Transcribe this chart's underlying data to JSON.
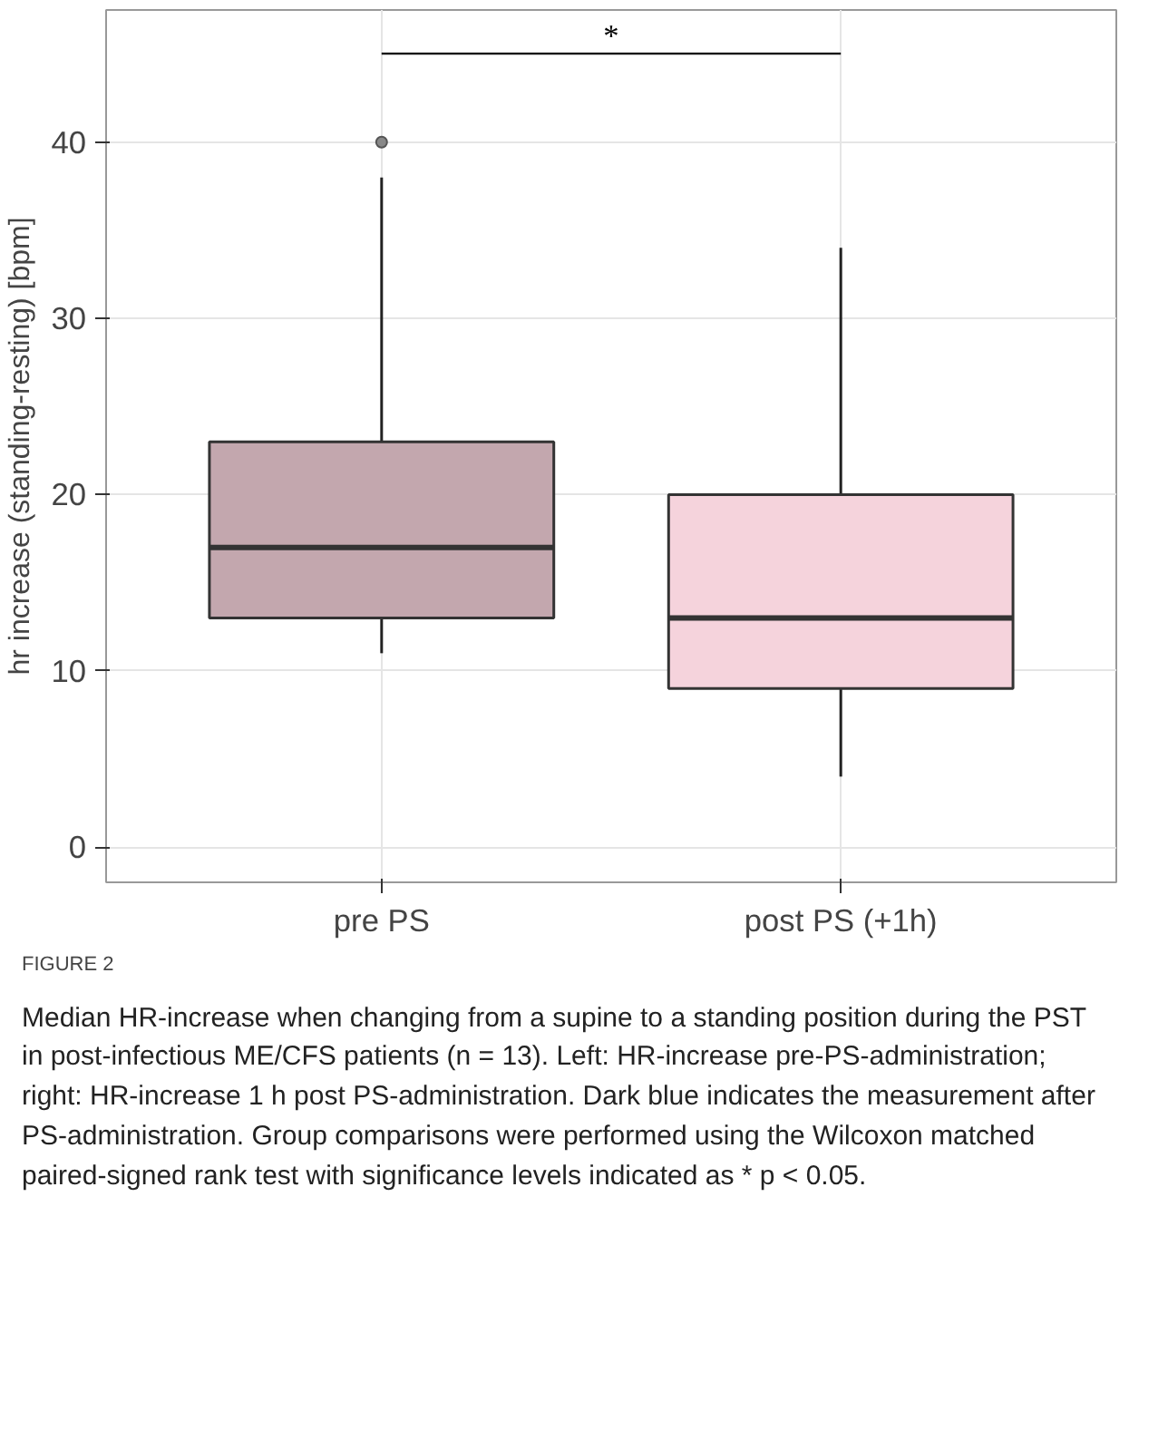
{
  "chart_data": {
    "type": "box",
    "ylabel": "hr increase (standing-resting) [bpm]",
    "categories": [
      "pre PS",
      "post PS (+1h)"
    ],
    "boxes": [
      {
        "low": 11,
        "q1": 13,
        "median": 17,
        "q3": 23,
        "high": 38,
        "outliers": [
          40
        ]
      },
      {
        "low": 4,
        "q1": 9,
        "median": 13,
        "q3": 20,
        "high": 34
      }
    ],
    "colors": [
      "#c3a7ae",
      "#f5d3dc"
    ],
    "ylim": [
      -2,
      47.5
    ],
    "yticks": [
      0,
      10,
      20,
      30,
      40
    ],
    "grid": true,
    "annotations": [
      "*",
      "FIGURE 2",
      "Median HR-increase when changing from a supine to a standing position during the PST in post-infectious ME/CFS patients (n = 13). Left: HR-increase pre-PS-administration; right: HR-increase 1 h post PS-administration. Dark blue indicates the measurement after PS-administration. Group comparisons were performed using the Wilcoxon matched paired-signed rank test with significance levels indicated as * p < 0.05."
    ]
  }
}
